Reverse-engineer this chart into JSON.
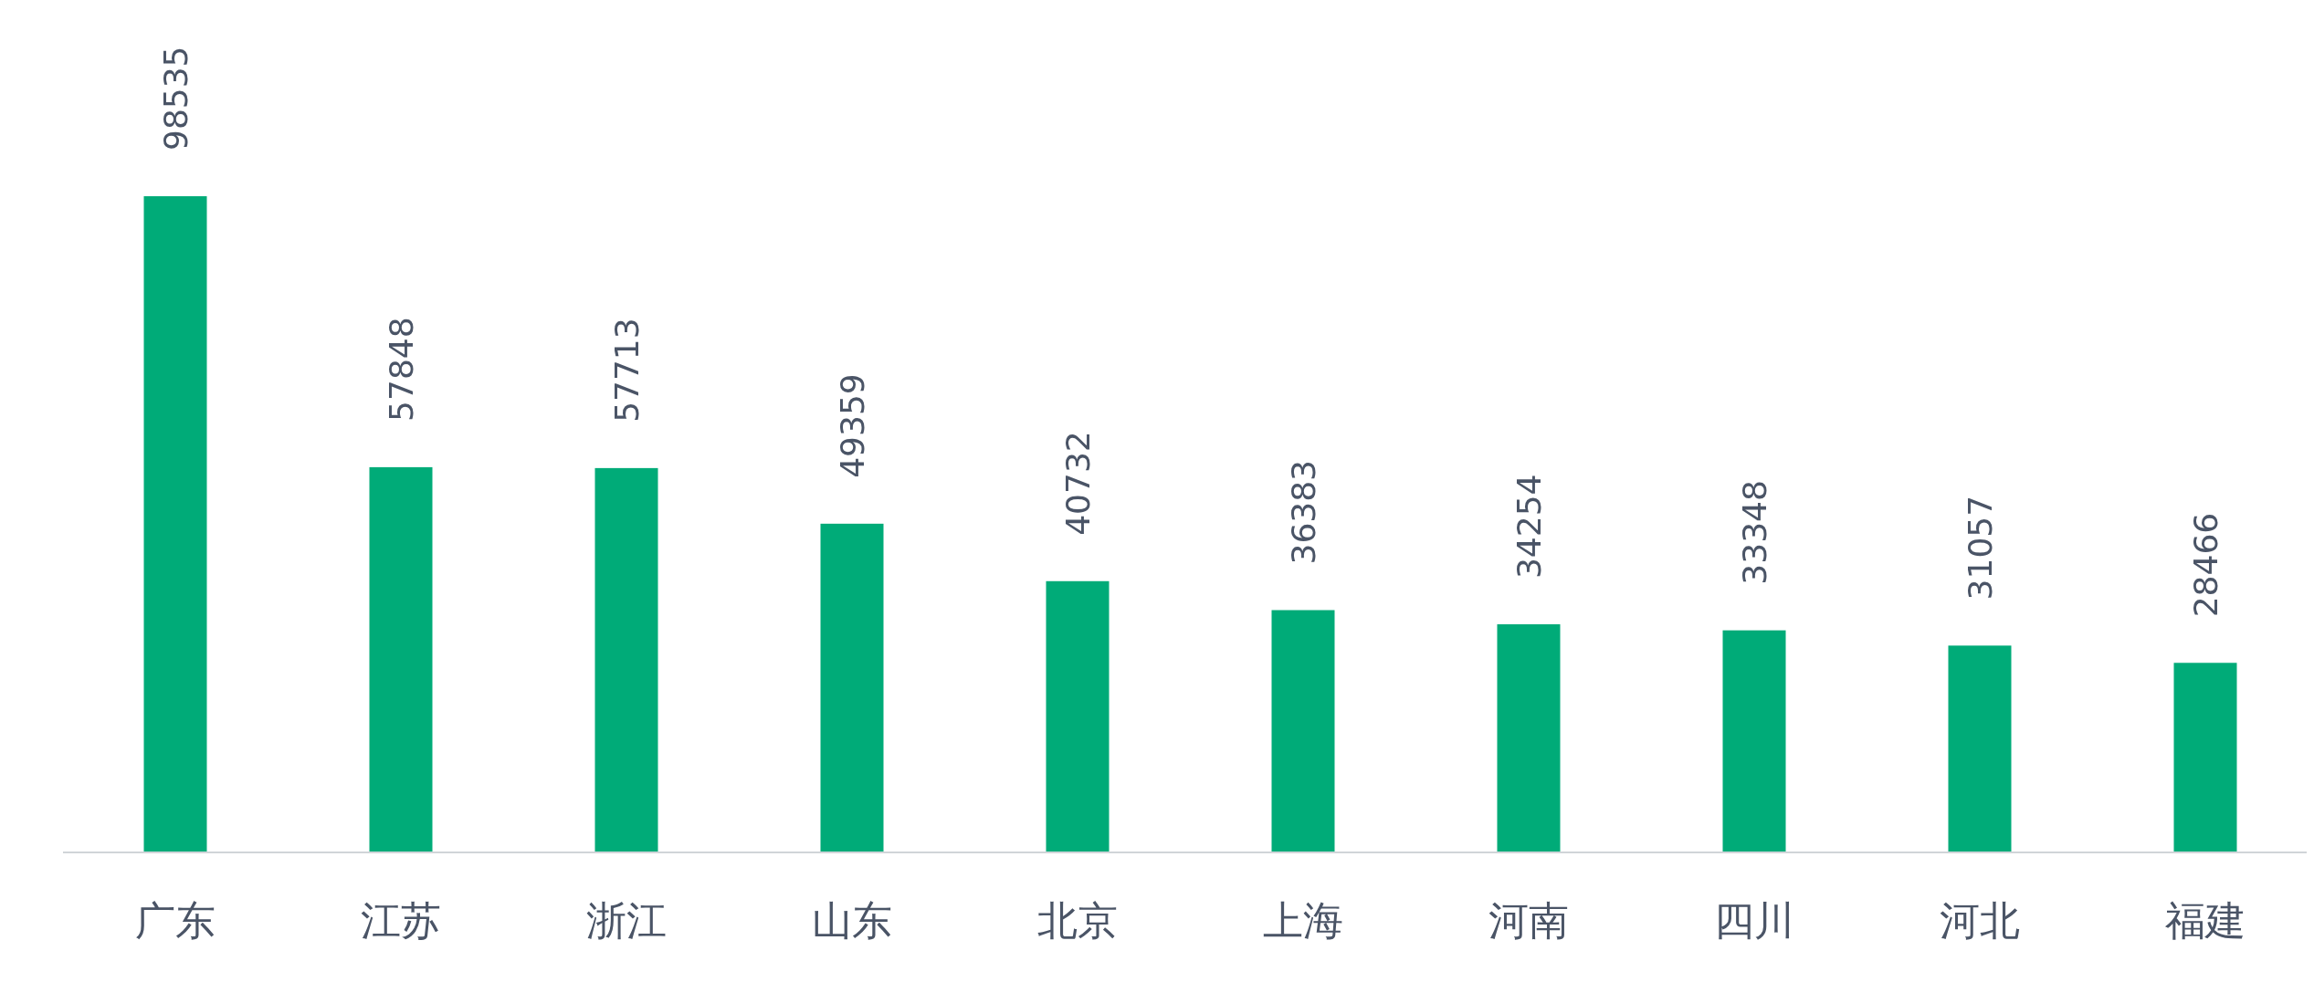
{
  "chart_data": {
    "type": "bar",
    "categories": [
      "广东",
      "江苏",
      "浙江",
      "山东",
      "北京",
      "上海",
      "河南",
      "四川",
      "河北",
      "福建"
    ],
    "values": [
      98535,
      57848,
      57713,
      49359,
      40732,
      36383,
      34254,
      33348,
      31057,
      28466
    ],
    "color": "#00ab78",
    "data_labels": true
  }
}
